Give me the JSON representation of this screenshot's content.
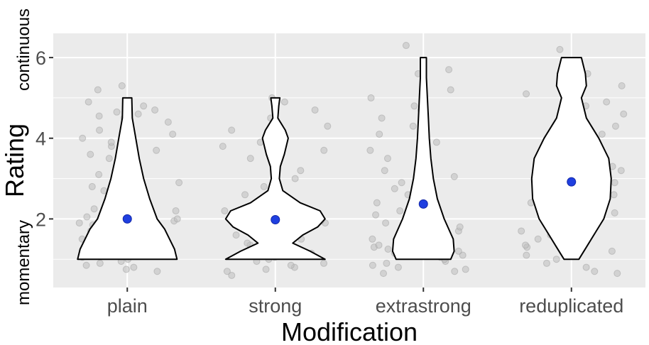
{
  "chart_data": {
    "type": "violin",
    "xlabel": "Modification",
    "ylabel": "Rating",
    "y_anchor_low": "momentary",
    "y_anchor_high": "continuous",
    "ylim": [
      0.3,
      6.6
    ],
    "yticks": [
      2,
      4,
      6
    ],
    "ytick_labels": [
      "2",
      "4",
      "6"
    ],
    "grid": true,
    "categories": [
      "plain",
      "strong",
      "extrastrong",
      "reduplicated"
    ],
    "means": [
      2.0,
      1.98,
      2.37,
      2.92
    ],
    "colors": {
      "panel_background": "#ebebeb",
      "grid": "#ffffff",
      "violin_fill": "#ffffff",
      "violin_outline": "#000000",
      "mean_point": "#1f3fe0",
      "jitter_point": "#bdbdbd"
    },
    "violin_density": [
      [
        [
          1,
          1.0
        ],
        [
          1.25,
          0.95
        ],
        [
          1.5,
          0.85
        ],
        [
          1.75,
          0.75
        ],
        [
          2,
          0.6
        ],
        [
          2.5,
          0.45
        ],
        [
          3,
          0.33
        ],
        [
          3.5,
          0.24
        ],
        [
          4,
          0.17
        ],
        [
          4.5,
          0.1
        ],
        [
          5,
          0.09
        ]
      ],
      [
        [
          1,
          1.0
        ],
        [
          1.2,
          0.7
        ],
        [
          1.4,
          0.35
        ],
        [
          1.6,
          0.55
        ],
        [
          1.8,
          0.85
        ],
        [
          2,
          1.0
        ],
        [
          2.2,
          0.9
        ],
        [
          2.4,
          0.5
        ],
        [
          2.7,
          0.15
        ],
        [
          3,
          0.08
        ],
        [
          3.3,
          0.1
        ],
        [
          3.6,
          0.18
        ],
        [
          4,
          0.26
        ],
        [
          4.2,
          0.2
        ],
        [
          4.5,
          0.05
        ],
        [
          4.8,
          0.07
        ],
        [
          5,
          0.09
        ]
      ],
      [
        [
          1,
          0.55
        ],
        [
          1.2,
          0.62
        ],
        [
          1.5,
          0.6
        ],
        [
          2,
          0.42
        ],
        [
          2.5,
          0.28
        ],
        [
          3,
          0.2
        ],
        [
          3.5,
          0.15
        ],
        [
          4,
          0.12
        ],
        [
          4.5,
          0.1
        ],
        [
          5,
          0.08
        ],
        [
          5.5,
          0.06
        ],
        [
          6,
          0.06
        ]
      ],
      [
        [
          1,
          0.15
        ],
        [
          1.3,
          0.3
        ],
        [
          1.7,
          0.5
        ],
        [
          2,
          0.65
        ],
        [
          2.5,
          0.78
        ],
        [
          3,
          0.8
        ],
        [
          3.5,
          0.75
        ],
        [
          4,
          0.55
        ],
        [
          4.5,
          0.3
        ],
        [
          5,
          0.2
        ],
        [
          5.3,
          0.3
        ],
        [
          5.6,
          0.28
        ],
        [
          6,
          0.2
        ]
      ]
    ],
    "jitter_points": [
      [
        [
          1,
          0.75
        ],
        [
          1,
          0.8
        ],
        [
          1,
          0.85
        ],
        [
          1,
          0.9
        ],
        [
          1,
          0.95
        ],
        [
          1,
          1.0
        ],
        [
          1,
          1.05
        ],
        [
          1,
          1.1
        ],
        [
          1,
          1.15
        ],
        [
          1,
          1.2
        ],
        [
          1,
          1.25
        ],
        [
          1,
          0.7
        ],
        [
          2,
          1.4
        ],
        [
          2,
          1.5
        ],
        [
          2,
          1.55
        ],
        [
          2,
          1.6
        ],
        [
          2,
          1.65
        ],
        [
          2,
          1.7
        ],
        [
          2,
          1.75
        ],
        [
          2,
          1.8
        ],
        [
          2,
          1.85
        ],
        [
          2,
          1.9
        ],
        [
          2,
          1.95
        ],
        [
          2,
          2.0
        ],
        [
          2,
          2.05
        ],
        [
          2,
          2.1
        ],
        [
          2,
          2.2
        ],
        [
          2,
          2.25
        ],
        [
          2,
          2.3
        ],
        [
          3,
          2.55
        ],
        [
          3,
          2.6
        ],
        [
          3,
          2.7
        ],
        [
          3,
          2.8
        ],
        [
          3,
          2.9
        ],
        [
          3,
          3.0
        ],
        [
          3,
          3.1
        ],
        [
          3,
          2.5
        ],
        [
          4,
          3.5
        ],
        [
          4,
          3.6
        ],
        [
          4,
          3.7
        ],
        [
          4,
          3.8
        ],
        [
          4,
          3.9
        ],
        [
          4,
          4.0
        ],
        [
          4,
          4.1
        ],
        [
          4,
          4.2
        ],
        [
          5,
          4.4
        ],
        [
          5,
          4.5
        ],
        [
          5,
          4.55
        ],
        [
          5,
          4.6
        ],
        [
          5,
          4.65
        ],
        [
          5,
          4.7
        ],
        [
          5,
          4.8
        ],
        [
          5,
          4.9
        ],
        [
          6,
          5.2
        ],
        [
          6,
          5.3
        ]
      ],
      [
        [
          1,
          0.6
        ],
        [
          1,
          0.7
        ],
        [
          1,
          0.75
        ],
        [
          1,
          0.8
        ],
        [
          1,
          0.85
        ],
        [
          1,
          0.9
        ],
        [
          1,
          0.95
        ],
        [
          1,
          1.0
        ],
        [
          1,
          1.05
        ],
        [
          1,
          1.1
        ],
        [
          1,
          1.15
        ],
        [
          1,
          1.2
        ],
        [
          1,
          1.3
        ],
        [
          1,
          1.35
        ],
        [
          2,
          1.4
        ],
        [
          2,
          1.5
        ],
        [
          2,
          1.6
        ],
        [
          2,
          1.7
        ],
        [
          2,
          1.8
        ],
        [
          2,
          1.85
        ],
        [
          2,
          1.9
        ],
        [
          2,
          1.95
        ],
        [
          2,
          2.0
        ],
        [
          2,
          2.05
        ],
        [
          2,
          2.1
        ],
        [
          2,
          2.15
        ],
        [
          2,
          2.2
        ],
        [
          2,
          2.3
        ],
        [
          2,
          2.4
        ],
        [
          3,
          2.6
        ],
        [
          3,
          2.8
        ],
        [
          3,
          3.0
        ],
        [
          3,
          3.2
        ],
        [
          3,
          3.5
        ],
        [
          4,
          3.7
        ],
        [
          4,
          3.8
        ],
        [
          4,
          3.9
        ],
        [
          4,
          4.0
        ],
        [
          4,
          4.1
        ],
        [
          4,
          4.2
        ],
        [
          4,
          4.3
        ],
        [
          5,
          4.5
        ],
        [
          5,
          4.7
        ],
        [
          5,
          4.9
        ],
        [
          5,
          5.0
        ]
      ],
      [
        [
          1,
          0.65
        ],
        [
          1,
          0.7
        ],
        [
          1,
          0.75
        ],
        [
          1,
          0.8
        ],
        [
          1,
          0.85
        ],
        [
          1,
          0.9
        ],
        [
          1,
          0.95
        ],
        [
          1,
          1.0
        ],
        [
          1,
          1.05
        ],
        [
          1,
          1.1
        ],
        [
          1,
          1.15
        ],
        [
          1,
          1.2
        ],
        [
          1,
          1.25
        ],
        [
          1,
          1.3
        ],
        [
          1,
          1.35
        ],
        [
          2,
          1.5
        ],
        [
          2,
          1.6
        ],
        [
          2,
          1.7
        ],
        [
          2,
          1.8
        ],
        [
          2,
          1.9
        ],
        [
          2,
          2.0
        ],
        [
          2,
          2.1
        ],
        [
          2,
          2.2
        ],
        [
          2,
          2.3
        ],
        [
          2,
          2.4
        ],
        [
          3,
          2.6
        ],
        [
          3,
          2.75
        ],
        [
          3,
          2.9
        ],
        [
          3,
          3.05
        ],
        [
          3,
          3.2
        ],
        [
          4,
          3.5
        ],
        [
          4,
          3.7
        ],
        [
          4,
          3.9
        ],
        [
          4,
          4.1
        ],
        [
          4,
          4.3
        ],
        [
          5,
          4.5
        ],
        [
          5,
          4.7
        ],
        [
          5,
          4.8
        ],
        [
          5,
          5.0
        ],
        [
          5,
          5.2
        ],
        [
          6,
          5.6
        ],
        [
          6,
          5.7
        ],
        [
          6,
          6.3
        ]
      ],
      [
        [
          1,
          0.65
        ],
        [
          1,
          0.7
        ],
        [
          1,
          0.8
        ],
        [
          1,
          0.9
        ],
        [
          1,
          1.0
        ],
        [
          1,
          1.1
        ],
        [
          1,
          1.2
        ],
        [
          1,
          1.3
        ],
        [
          1,
          1.35
        ],
        [
          2,
          1.5
        ],
        [
          2,
          1.6
        ],
        [
          2,
          1.7
        ],
        [
          2,
          1.8
        ],
        [
          2,
          1.9
        ],
        [
          2,
          2.0
        ],
        [
          2,
          2.1
        ],
        [
          2,
          2.15
        ],
        [
          2,
          2.2
        ],
        [
          2,
          2.3
        ],
        [
          2,
          2.4
        ],
        [
          3,
          2.6
        ],
        [
          3,
          2.7
        ],
        [
          3,
          2.8
        ],
        [
          3,
          2.9
        ],
        [
          3,
          3.0
        ],
        [
          3,
          3.1
        ],
        [
          3,
          3.2
        ],
        [
          3,
          3.3
        ],
        [
          4,
          3.5
        ],
        [
          4,
          3.7
        ],
        [
          4,
          3.9
        ],
        [
          4,
          4.1
        ],
        [
          4,
          4.3
        ],
        [
          4,
          4.4
        ],
        [
          5,
          4.6
        ],
        [
          5,
          4.8
        ],
        [
          5,
          4.9
        ],
        [
          5,
          5.0
        ],
        [
          5,
          5.1
        ],
        [
          5,
          5.3
        ],
        [
          6,
          5.5
        ],
        [
          6,
          5.6
        ],
        [
          6,
          6.2
        ]
      ]
    ]
  }
}
